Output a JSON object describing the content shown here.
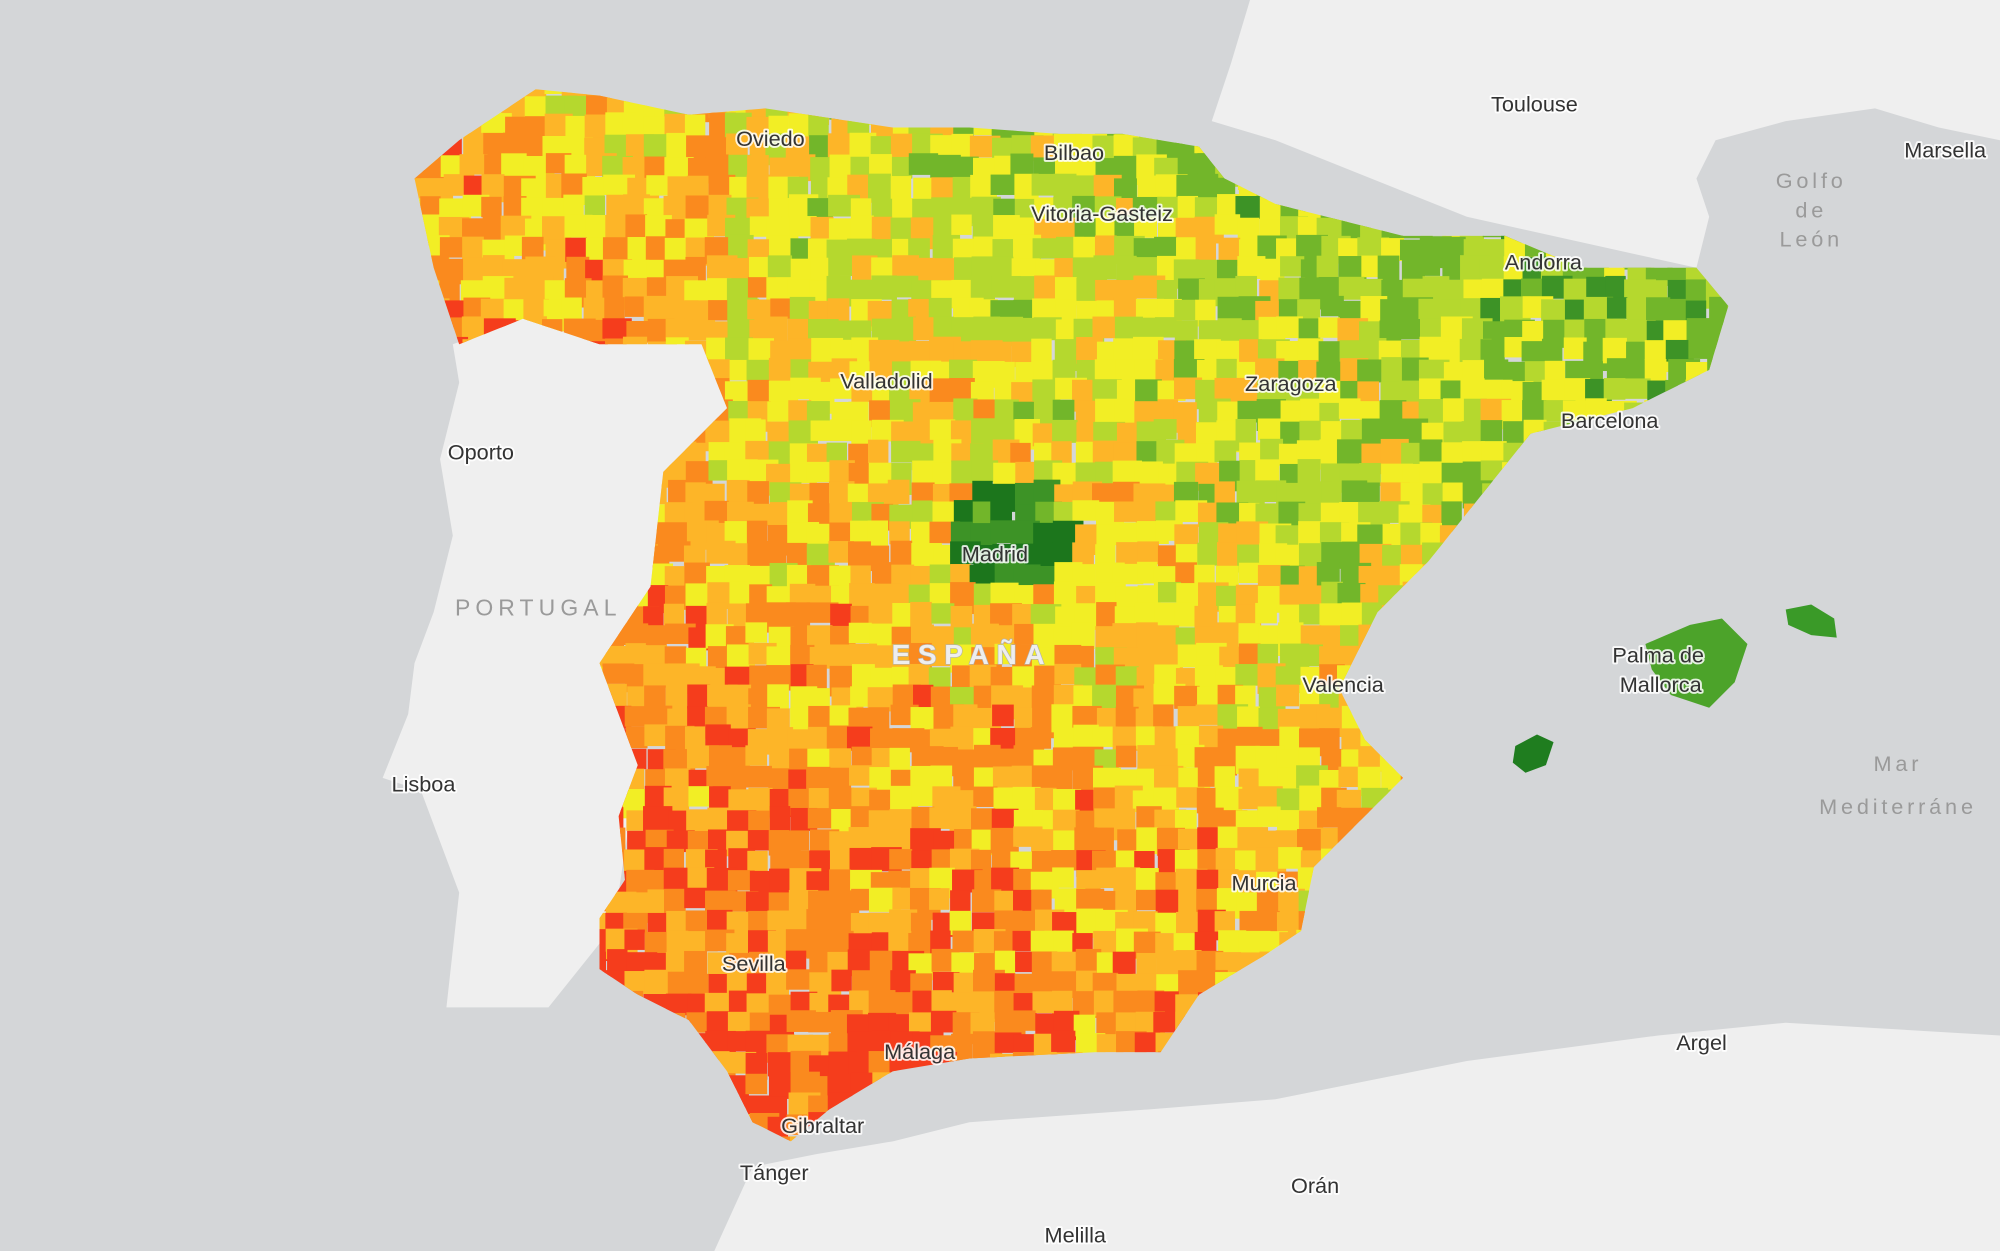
{
  "places": [
    "Toulouse",
    "Marsella",
    "Oviedo",
    "Bilbao",
    "Vitoria-Gasteiz",
    "Andorra",
    "Valladolid",
    "Zaragoza",
    "Barcelona",
    "Oporto",
    "Madrid",
    "Valencia",
    "Palma de",
    "Mallorca",
    "Lisboa",
    "Murcia",
    "Sevilla",
    "Málaga",
    "Argel",
    "Gibraltar",
    "Tánger",
    "Orán",
    "Melilla"
  ],
  "countries": [
    "PORTUGAL",
    "ESPAÑA"
  ],
  "seas": [
    [
      "Golfo",
      "de",
      "León"
    ],
    [
      "Mar",
      "Mediterráne"
    ]
  ]
}
